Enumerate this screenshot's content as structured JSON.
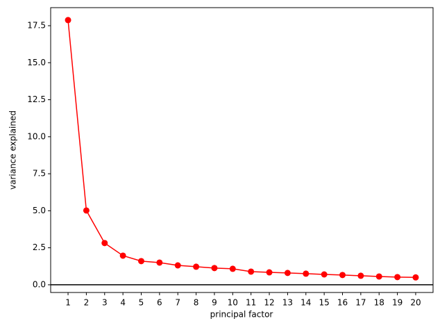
{
  "chart_data": {
    "type": "line",
    "xlabel": "principal factor",
    "ylabel": "variance explained",
    "x": [
      1,
      2,
      3,
      4,
      5,
      6,
      7,
      8,
      9,
      10,
      11,
      12,
      13,
      14,
      15,
      16,
      17,
      18,
      19,
      20
    ],
    "series": [
      {
        "color": "#ff0000",
        "values": [
          17.88,
          5.02,
          2.82,
          1.97,
          1.6,
          1.5,
          1.31,
          1.22,
          1.13,
          1.08,
          0.89,
          0.84,
          0.8,
          0.75,
          0.7,
          0.66,
          0.61,
          0.56,
          0.52,
          0.5
        ]
      }
    ],
    "xlim": [
      0.05,
      20.95
    ],
    "ylim": [
      -0.52,
      18.72
    ],
    "xticks": [
      1,
      2,
      3,
      4,
      5,
      6,
      7,
      8,
      9,
      10,
      11,
      12,
      13,
      14,
      15,
      16,
      17,
      18,
      19,
      20
    ],
    "yticks": [
      {
        "value": 0,
        "label": "0.0"
      },
      {
        "value": 2.5,
        "label": "2.5"
      },
      {
        "value": 5,
        "label": "5.0"
      },
      {
        "value": 7.5,
        "label": "7.5"
      },
      {
        "value": 10,
        "label": "10.0"
      },
      {
        "value": 12.5,
        "label": "12.5"
      },
      {
        "value": 15,
        "label": "15.0"
      },
      {
        "value": 17.5,
        "label": "17.5"
      }
    ],
    "hline": 0,
    "hline_color": "#000000",
    "grid": false
  }
}
